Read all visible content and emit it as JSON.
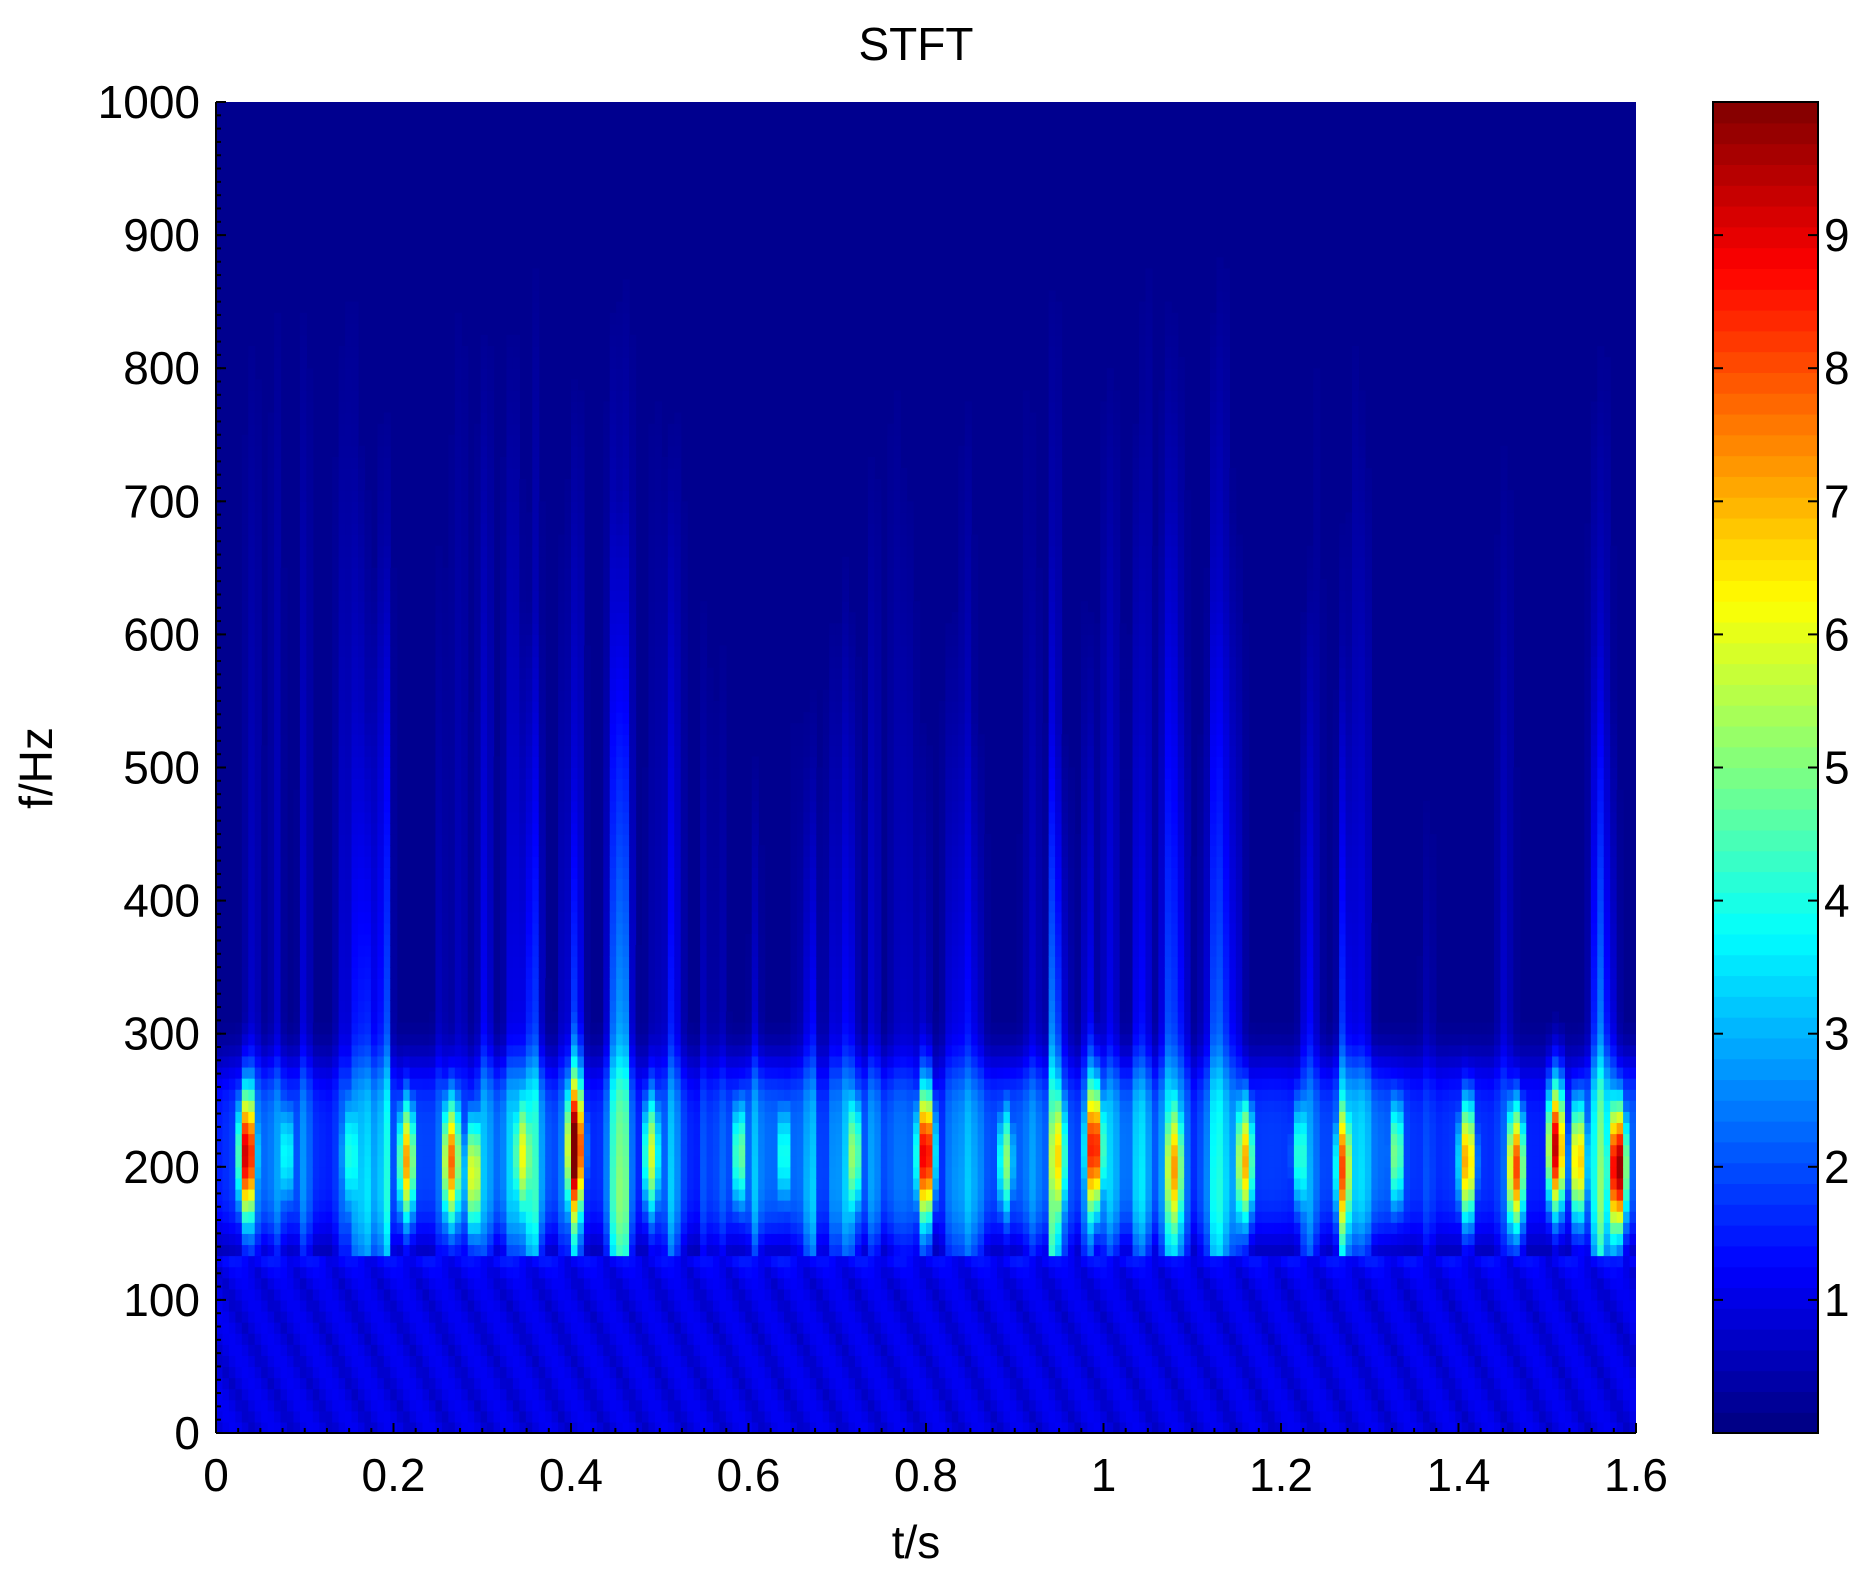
{
  "chart_data": {
    "type": "heatmap",
    "title": "STFT",
    "xlabel": "t/s",
    "ylabel": "f/Hz",
    "xlim": [
      0,
      1.6
    ],
    "ylim": [
      0,
      1000
    ],
    "xticks": [
      0,
      0.2,
      0.4,
      0.6,
      0.8,
      1,
      1.2,
      1.4,
      1.6
    ],
    "xtick_labels": [
      "0",
      "0.2",
      "0.4",
      "0.6",
      "0.8",
      "1",
      "1.2",
      "1.4",
      "1.6"
    ],
    "yticks": [
      0,
      100,
      200,
      300,
      400,
      500,
      600,
      700,
      800,
      900,
      1000
    ],
    "ytick_labels": [
      "0",
      "100",
      "200",
      "300",
      "400",
      "500",
      "600",
      "700",
      "800",
      "900",
      "1000"
    ],
    "colormap": "jet",
    "clim": [
      0,
      10
    ],
    "colorbar_ticks": [
      1,
      2,
      3,
      4,
      5,
      6,
      7,
      8,
      9
    ],
    "colorbar_labels": [
      "1",
      "2",
      "3",
      "4",
      "5",
      "6",
      "7",
      "8",
      "9"
    ],
    "colorbar_location": "right",
    "energy_band_hz": [
      120,
      300
    ],
    "band_center_hz": 210,
    "peaks": [
      {
        "t": 0.035,
        "f": 210,
        "value": 9.3
      },
      {
        "t": 0.08,
        "f": 210,
        "value": 4.0
      },
      {
        "t": 0.15,
        "f": 210,
        "value": 3.2
      },
      {
        "t": 0.215,
        "f": 205,
        "value": 7.2
      },
      {
        "t": 0.265,
        "f": 205,
        "value": 7.5
      },
      {
        "t": 0.29,
        "f": 195,
        "value": 6.2
      },
      {
        "t": 0.345,
        "f": 210,
        "value": 5.0
      },
      {
        "t": 0.405,
        "f": 215,
        "value": 9.0
      },
      {
        "t": 0.49,
        "f": 210,
        "value": 5.5
      },
      {
        "t": 0.59,
        "f": 210,
        "value": 5.0
      },
      {
        "t": 0.64,
        "f": 210,
        "value": 4.3
      },
      {
        "t": 0.72,
        "f": 210,
        "value": 4.5
      },
      {
        "t": 0.8,
        "f": 210,
        "value": 9.0
      },
      {
        "t": 0.89,
        "f": 205,
        "value": 5.2
      },
      {
        "t": 0.95,
        "f": 210,
        "value": 4.4
      },
      {
        "t": 0.99,
        "f": 215,
        "value": 8.5
      },
      {
        "t": 1.08,
        "f": 200,
        "value": 5.2
      },
      {
        "t": 1.16,
        "f": 205,
        "value": 6.8
      },
      {
        "t": 1.22,
        "f": 210,
        "value": 4.0
      },
      {
        "t": 1.27,
        "f": 200,
        "value": 6.0
      },
      {
        "t": 1.33,
        "f": 210,
        "value": 5.2
      },
      {
        "t": 1.41,
        "f": 205,
        "value": 7.5
      },
      {
        "t": 1.465,
        "f": 200,
        "value": 8.0
      },
      {
        "t": 1.51,
        "f": 215,
        "value": 9.4
      },
      {
        "t": 1.535,
        "f": 205,
        "value": 7.2
      },
      {
        "t": 1.58,
        "f": 200,
        "value": 9.8
      }
    ]
  }
}
